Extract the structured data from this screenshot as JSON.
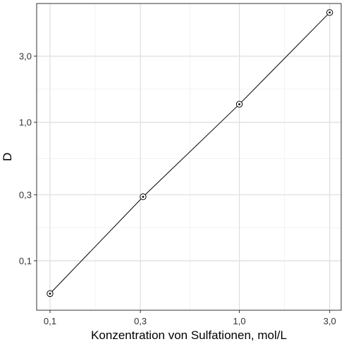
{
  "chart_data": {
    "type": "scatter",
    "title": "",
    "xlabel": "Konzentration von Sulfationen, mol/L",
    "ylabel": "D",
    "x_scale": "log",
    "y_scale": "log",
    "xlim": [
      0.085,
      3.45
    ],
    "ylim": [
      0.044,
      7.2
    ],
    "x_ticks": [
      {
        "value": 0.1,
        "label": "0,1"
      },
      {
        "value": 0.3,
        "label": "0,3"
      },
      {
        "value": 1.0,
        "label": "1,0"
      },
      {
        "value": 3.0,
        "label": "3,0"
      }
    ],
    "y_ticks": [
      {
        "value": 0.1,
        "label": "0,1"
      },
      {
        "value": 0.3,
        "label": "0,3"
      },
      {
        "value": 1.0,
        "label": "1,0"
      },
      {
        "value": 3.0,
        "label": "3,0"
      }
    ],
    "grid": true,
    "series": [
      {
        "x": [
          0.1,
          0.31,
          1.0,
          3.0
        ],
        "y": [
          0.058,
          0.29,
          1.35,
          6.2
        ],
        "marker": "circle-dot",
        "line": true
      }
    ]
  }
}
